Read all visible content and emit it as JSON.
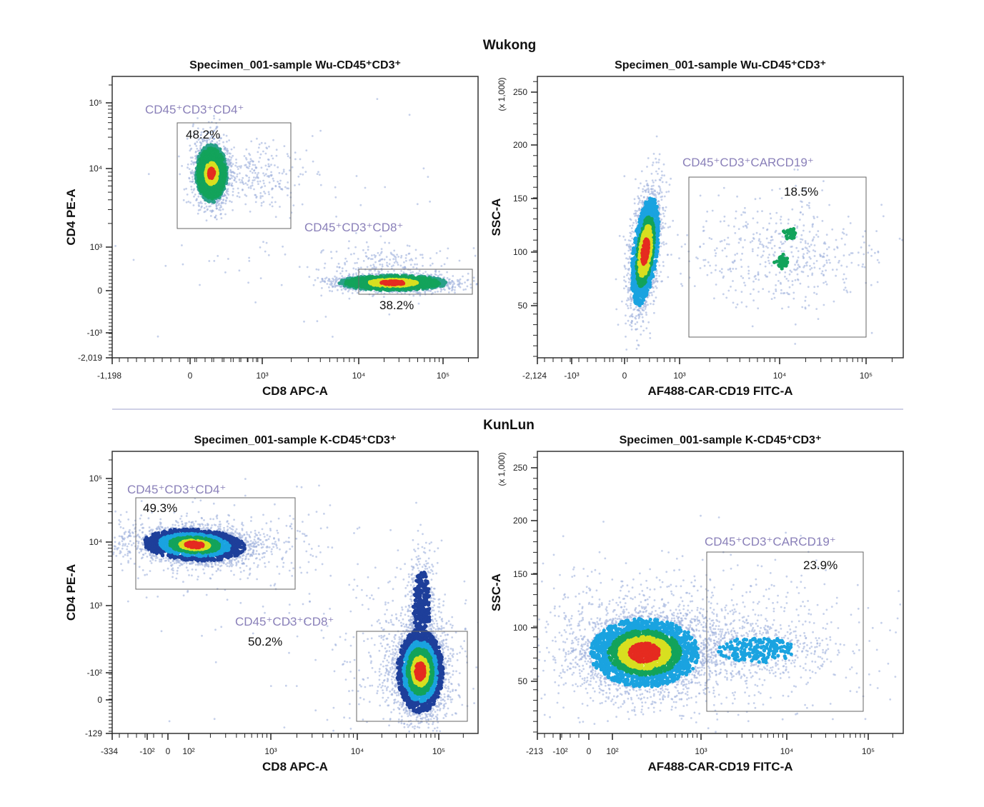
{
  "figure": {
    "groups": [
      "Wukong",
      "KunLun"
    ]
  },
  "chart_data": [
    {
      "type": "scatter",
      "group": "Wukong",
      "title": "Specimen_001-sample Wu-CD45⁺CD3⁺",
      "xlabel": "CD8 APC-A",
      "ylabel": "CD4 PE-A",
      "y_multiplier": "",
      "x_scale": "biexponential",
      "y_scale": "biexponential",
      "xticks": [
        "-1,198",
        "0",
        "10³",
        "10⁴",
        "10⁵"
      ],
      "yticks": [
        "10⁵",
        "10⁴",
        "10³",
        "0",
        "-10³",
        "-2,019"
      ],
      "gates": [
        {
          "label": "CD45⁺CD3⁺CD4⁺",
          "percent": "48.2%"
        },
        {
          "label": "CD45⁺CD3⁺CD8⁺",
          "percent": "38.2%"
        }
      ]
    },
    {
      "type": "scatter",
      "group": "Wukong",
      "title": "Specimen_001-sample Wu-CD45⁺CD3⁺",
      "xlabel": "AF488-CAR-CD19 FITC-A",
      "ylabel": "SSC-A",
      "y_multiplier": "(x 1,000)",
      "x_scale": "biexponential",
      "y_scale": "linear",
      "xticks": [
        "-2,124",
        "-10³",
        "0",
        "10³",
        "10⁴",
        "10⁵"
      ],
      "yticks": [
        "250",
        "200",
        "150",
        "100",
        "50"
      ],
      "gates": [
        {
          "label": "CD45⁺CD3⁺CARCD19⁺",
          "percent": "18.5%"
        }
      ]
    },
    {
      "type": "scatter",
      "group": "KunLun",
      "title": "Specimen_001-sample K-CD45⁺CD3⁺",
      "xlabel": "CD8 APC-A",
      "ylabel": "CD4 PE-A",
      "y_multiplier": "",
      "x_scale": "biexponential",
      "y_scale": "biexponential",
      "xticks": [
        "-334",
        "-10²",
        "0",
        "10²",
        "10³",
        "10⁴",
        "10⁵"
      ],
      "yticks": [
        "10⁵",
        "10⁴",
        "10³",
        "-10²",
        "0",
        "-129"
      ],
      "gates": [
        {
          "label": "CD45⁺CD3⁺CD4⁺",
          "percent": "49.3%"
        },
        {
          "label": "CD45⁺CD3⁺CD8⁺",
          "percent": "50.2%"
        }
      ]
    },
    {
      "type": "scatter",
      "group": "KunLun",
      "title": "Specimen_001-sample K-CD45⁺CD3⁺",
      "xlabel": "AF488-CAR-CD19 FITC-A",
      "ylabel": "SSC-A",
      "y_multiplier": "(x 1,000)",
      "x_scale": "biexponential",
      "y_scale": "linear",
      "xticks": [
        "-213",
        "-10²",
        "0",
        "10²",
        "10³",
        "10⁴",
        "10⁵"
      ],
      "yticks": [
        "250",
        "200",
        "150",
        "100",
        "50"
      ],
      "gates": [
        {
          "label": "CD45⁺CD3⁺CARCD19⁺",
          "percent": "23.9%"
        }
      ]
    }
  ],
  "colors": {
    "gate_label": "#8a80b9",
    "density_high": "#e52b20",
    "density_mid_high": "#d8df20",
    "density_mid": "#13a35b",
    "density_low_cyan": "#1aa3e0",
    "density_low_blue": "#1e3f9a",
    "density_sparse": "#9fb0dc"
  }
}
